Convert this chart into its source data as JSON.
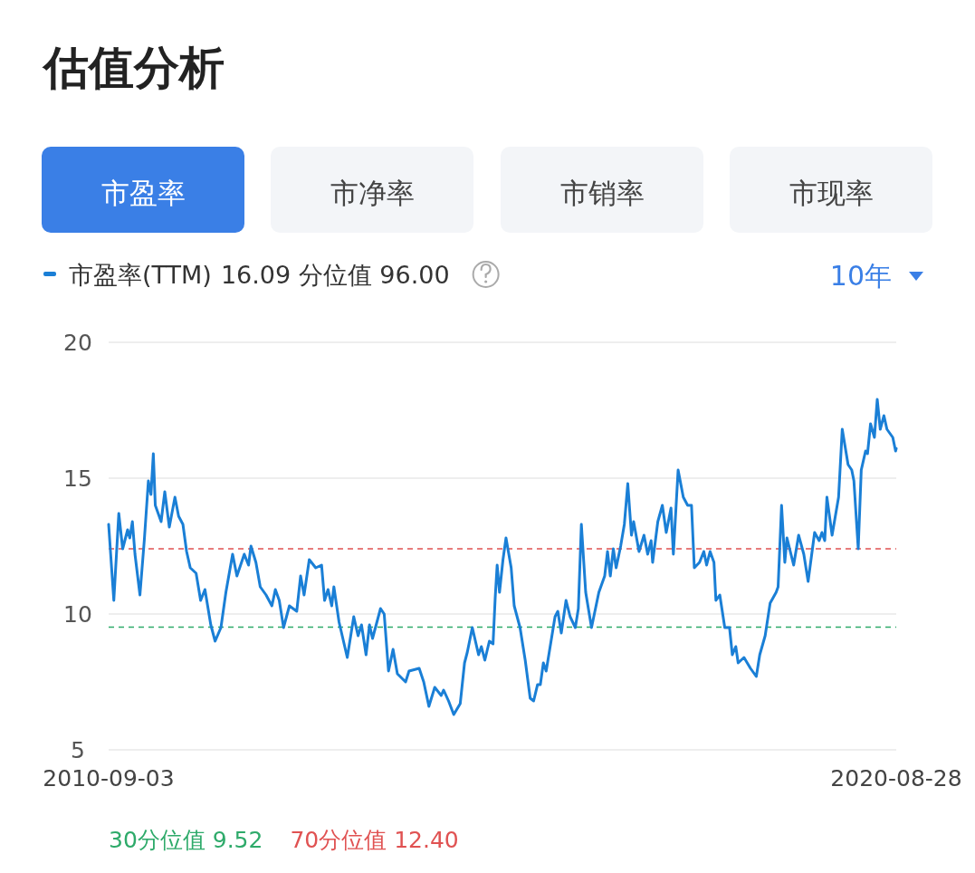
{
  "chart_data": {
    "type": "line",
    "title": "估值分析",
    "annotations": [
      "市盈率",
      "市净率",
      "市销率",
      "市现率",
      "16.09 分位值 96.00",
      "10年"
    ],
    "series": [
      {
        "name": "市盈率(TTM)",
        "color": "#1a7fd6",
        "x": [
          "2010-09-03",
          "2010-09-27",
          "2010-10-20",
          "2010-11-07",
          "2010-11-30",
          "2010-12-10",
          "2010-12-22",
          "2011-01-03",
          "2011-01-26",
          "2011-02-15",
          "2011-03-06",
          "2011-03-18",
          "2011-03-29",
          "2011-04-07",
          "2011-05-04",
          "2011-05-21",
          "2011-06-11",
          "2011-07-07",
          "2011-07-24",
          "2011-08-13",
          "2011-08-30",
          "2011-09-16",
          "2011-10-13",
          "2011-11-03",
          "2011-11-23",
          "2011-12-20",
          "2012-01-09",
          "2012-02-05",
          "2012-02-28",
          "2012-03-30",
          "2012-04-19",
          "2012-05-23",
          "2012-06-12",
          "2012-06-23",
          "2012-07-16",
          "2012-08-05",
          "2012-09-01",
          "2012-09-28",
          "2012-10-14",
          "2012-11-01",
          "2012-11-21",
          "2012-12-18",
          "2013-01-21",
          "2013-02-08",
          "2013-02-24",
          "2013-03-20",
          "2013-04-19",
          "2013-05-16",
          "2013-05-30",
          "2013-06-15",
          "2013-07-02",
          "2013-07-12",
          "2013-08-05",
          "2013-09-12",
          "2013-10-12",
          "2013-11-01",
          "2013-11-17",
          "2013-12-08",
          "2013-12-24",
          "2014-01-07",
          "2014-02-13",
          "2014-03-02",
          "2014-03-22",
          "2014-04-12",
          "2014-05-02",
          "2014-06-09",
          "2014-06-25",
          "2014-08-11",
          "2014-09-01",
          "2014-09-25",
          "2014-10-22",
          "2014-11-21",
          "2014-12-02",
          "2014-12-25",
          "2015-01-18",
          "2015-02-17",
          "2015-03-09",
          "2015-03-22",
          "2015-04-14",
          "2015-05-13",
          "2015-05-26",
          "2015-06-11",
          "2015-07-02",
          "2015-07-19",
          "2015-07-29",
          "2015-08-07",
          "2015-08-18",
          "2015-09-03",
          "2015-09-17",
          "2015-10-11",
          "2015-10-25",
          "2015-11-21",
          "2015-12-15",
          "2016-01-07",
          "2016-01-23",
          "2016-02-10",
          "2016-02-23",
          "2016-03-08",
          "2016-03-21",
          "2016-05-01",
          "2016-05-14",
          "2016-05-30",
          "2016-06-21",
          "2016-07-10",
          "2016-08-03",
          "2016-08-17",
          "2016-08-31",
          "2016-09-20",
          "2016-10-17",
          "2016-11-20",
          "2016-12-17",
          "2016-12-30",
          "2017-01-12",
          "2017-01-26",
          "2017-02-08",
          "2017-03-01",
          "2017-03-18",
          "2017-04-03",
          "2017-04-20",
          "2017-04-30",
          "2017-05-25",
          "2017-06-17",
          "2017-07-04",
          "2017-07-20",
          "2017-07-27",
          "2017-08-20",
          "2017-09-10",
          "2017-09-28",
          "2017-10-20",
          "2017-10-31",
          "2017-11-22",
          "2017-12-16",
          "2018-01-05",
          "2018-01-23",
          "2018-02-05",
          "2018-03-01",
          "2018-03-21",
          "2018-04-03",
          "2018-04-19",
          "2018-05-07",
          "2018-05-16",
          "2018-06-03",
          "2018-06-26",
          "2018-07-18",
          "2018-07-31",
          "2018-08-16",
          "2018-08-27",
          "2018-09-23",
          "2018-10-23",
          "2018-11-19",
          "2018-12-05",
          "2018-12-30",
          "2019-01-22",
          "2019-02-19",
          "2019-02-28",
          "2019-03-16",
          "2019-03-31",
          "2019-04-10",
          "2019-05-11",
          "2019-06-03",
          "2019-06-27",
          "2019-07-17",
          "2019-08-16",
          "2019-09-06",
          "2019-09-19",
          "2019-10-02",
          "2019-10-12",
          "2019-11-05",
          "2019-12-05",
          "2019-12-22",
          "2020-01-18",
          "2020-02-04",
          "2020-02-14",
          "2020-03-05",
          "2020-03-19",
          "2020-04-08",
          "2020-04-17",
          "2020-05-01",
          "2020-05-19",
          "2020-06-01",
          "2020-06-15",
          "2020-07-02",
          "2020-07-16",
          "2020-08-12",
          "2020-08-25",
          "2020-08-28"
        ],
        "values": [
          13.3,
          10.5,
          13.7,
          12.4,
          13.1,
          12.8,
          13.4,
          12.2,
          10.7,
          12.7,
          14.9,
          14.4,
          15.9,
          14.0,
          13.4,
          14.5,
          13.2,
          14.3,
          13.6,
          13.3,
          12.3,
          11.7,
          11.5,
          10.5,
          10.9,
          9.6,
          9.0,
          9.5,
          10.8,
          12.2,
          11.4,
          12.2,
          11.8,
          12.5,
          11.9,
          11.0,
          10.7,
          10.3,
          10.9,
          10.5,
          9.5,
          10.3,
          10.1,
          11.4,
          10.7,
          12.0,
          11.7,
          11.8,
          10.5,
          10.9,
          10.3,
          11.0,
          9.7,
          8.4,
          9.9,
          9.2,
          9.6,
          8.5,
          9.6,
          9.1,
          10.2,
          10.0,
          7.9,
          8.7,
          7.8,
          7.5,
          7.9,
          8.0,
          7.5,
          6.6,
          7.3,
          7.0,
          7.2,
          6.8,
          6.3,
          6.7,
          8.2,
          8.6,
          9.5,
          8.5,
          8.8,
          8.3,
          9.0,
          8.9,
          10.6,
          11.8,
          10.8,
          12.0,
          12.8,
          11.7,
          10.3,
          9.5,
          8.3,
          6.9,
          6.8,
          7.4,
          7.4,
          8.2,
          7.9,
          9.9,
          10.1,
          9.3,
          10.5,
          9.9,
          9.5,
          10.2,
          13.3,
          10.8,
          9.5,
          10.8,
          11.4,
          12.3,
          11.4,
          12.4,
          11.7,
          12.5,
          13.3,
          14.8,
          12.9,
          13.4,
          12.3,
          12.9,
          12.2,
          12.7,
          11.9,
          13.4,
          14.0,
          13.0,
          13.9,
          12.2,
          15.3,
          14.3,
          14.0,
          14.0,
          11.7,
          11.9,
          12.3,
          11.8,
          12.3,
          11.9,
          10.5,
          10.7,
          9.5,
          9.5,
          8.5,
          8.8,
          8.2,
          8.4,
          8.0,
          7.7,
          8.5,
          9.2,
          10.4,
          10.8,
          11.0,
          14.0,
          11.9,
          12.8,
          11.8,
          12.9,
          12.2,
          11.2,
          13.0,
          12.7,
          13.0,
          12.7,
          14.3,
          12.9,
          14.3,
          16.8,
          15.5,
          15.3,
          14.9,
          12.4,
          15.3,
          16.0,
          15.9,
          17.0,
          16.5,
          17.9,
          16.8,
          17.3,
          16.8,
          16.5,
          16.0,
          16.09
        ]
      }
    ],
    "xlim": [
      "2010-09-03",
      "2020-08-28"
    ],
    "xticks": [
      "2010-09-03",
      "2020-08-28"
    ],
    "ylim": [
      5,
      20
    ],
    "yticks": [
      5,
      10,
      15,
      20
    ],
    "grid": "y",
    "legend": "top left",
    "marker": "none",
    "line_style": "solid",
    "ref_lines": [
      {
        "axis": "y",
        "value": 9.52,
        "label": "30分位值 9.52",
        "color": "#2eaa6a",
        "line_style": "dashed"
      },
      {
        "axis": "y",
        "value": 12.4,
        "label": "70分位值 12.40",
        "color": "#e05252",
        "line_style": "dashed"
      }
    ]
  }
}
